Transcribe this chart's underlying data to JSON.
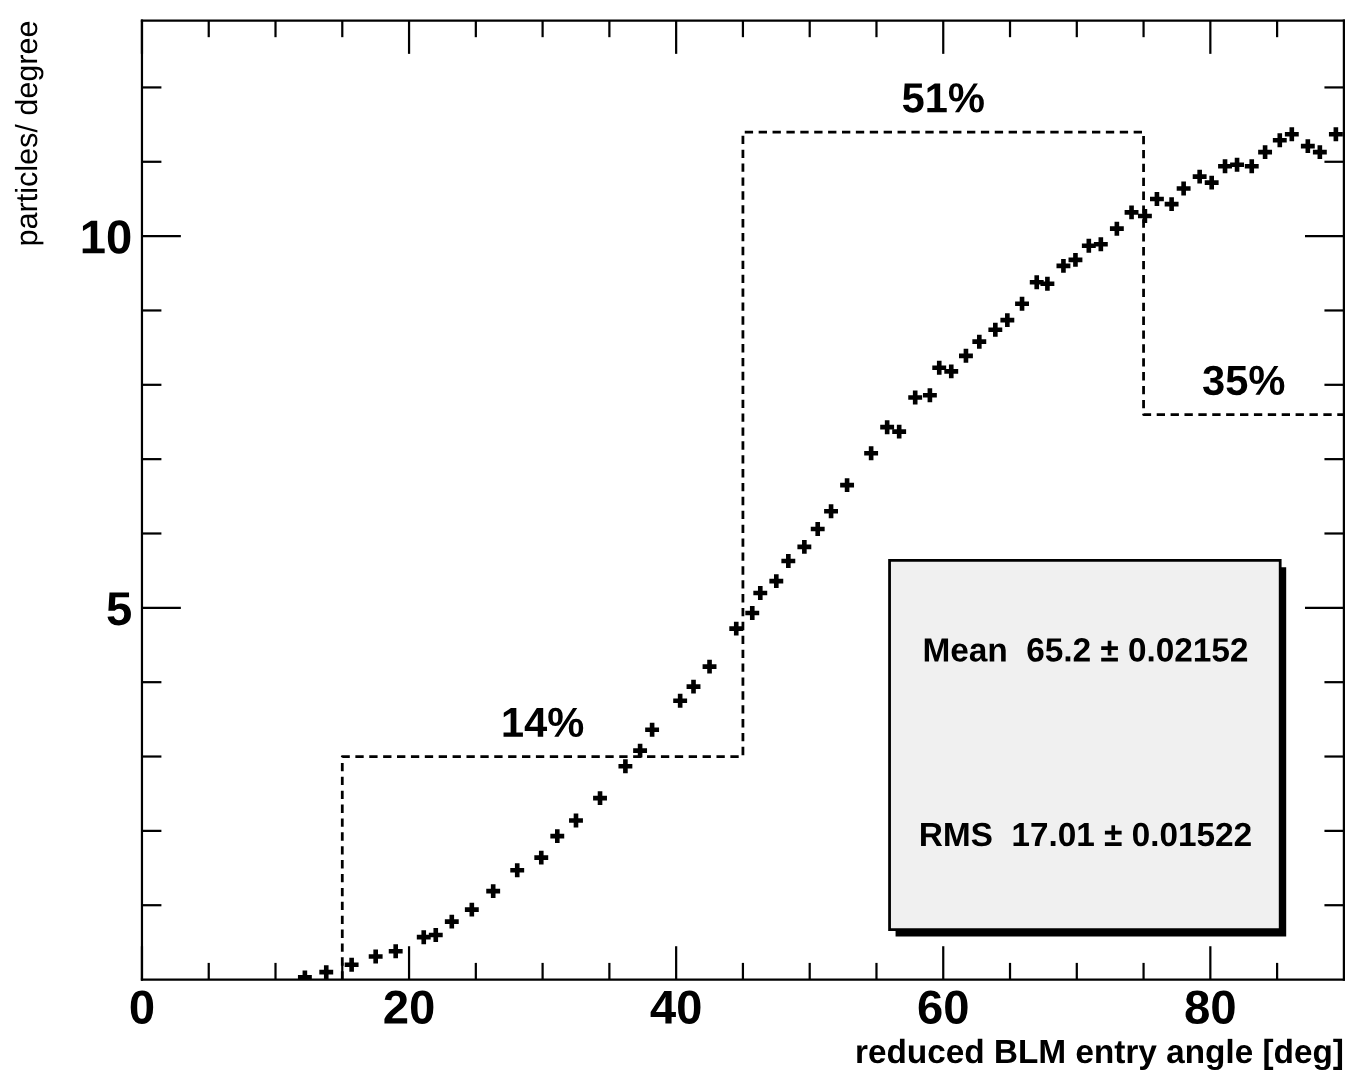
{
  "chart_data": {
    "type": "scatter",
    "xlabel": "reduced BLM entry angle [deg]",
    "ylabel": "particles/ degree",
    "xlim": [
      0,
      90
    ],
    "ylim": [
      0,
      12.9
    ],
    "xticks": [
      0,
      {
        "value": 5,
        "label": null
      },
      {
        "value": 10,
        "label": null
      },
      {
        "value": 15,
        "label": null
      },
      20,
      {
        "value": 25,
        "label": null
      },
      {
        "value": 30,
        "label": null
      },
      {
        "value": 35,
        "label": null
      },
      40,
      {
        "value": 45,
        "label": null
      },
      {
        "value": 50,
        "label": null
      },
      {
        "value": 55,
        "label": null
      },
      60,
      {
        "value": 65,
        "label": null
      },
      {
        "value": 70,
        "label": null
      },
      {
        "value": 75,
        "label": null
      },
      80,
      {
        "value": 85,
        "label": null
      }
    ],
    "yticks": [
      {
        "value": 1,
        "label": null
      },
      {
        "value": 2,
        "label": null
      },
      {
        "value": 3,
        "label": null
      },
      {
        "value": 4,
        "label": null
      },
      5,
      {
        "value": 6,
        "label": null
      },
      {
        "value": 7,
        "label": null
      },
      {
        "value": 8,
        "label": null
      },
      {
        "value": 9,
        "label": null
      },
      10,
      {
        "value": 11,
        "label": null
      },
      {
        "value": 12,
        "label": null
      }
    ],
    "grid": false,
    "marker": "cross",
    "series": [
      {
        "color": "#000000",
        "x": [
          12.2,
          13.8,
          15.7,
          17.5,
          19,
          21.1,
          22,
          23.2,
          24.7,
          26.3,
          28.1,
          29.9,
          31.1,
          32.5,
          34.3,
          36.2,
          37.3,
          38.2,
          40.3,
          41.3,
          42.5,
          44.5,
          45.7,
          46.3,
          47.5,
          48.4,
          49.6,
          50.6,
          51.6,
          52.8,
          54.6,
          55.8,
          56.7,
          57.9,
          59,
          59.7,
          60.6,
          61.7,
          62.7,
          63.9,
          64.8,
          65.9,
          67,
          67.8,
          69,
          69.9,
          70.9,
          71.8,
          73,
          74.1,
          75.1,
          76,
          77.1,
          78,
          79.2,
          80.1,
          81.1,
          82,
          83.1,
          84.1,
          85.2,
          86.1,
          87.3,
          88.2,
          89.4
        ],
        "values": [
          0.03,
          0.1,
          0.2,
          0.31,
          0.38,
          0.57,
          0.6,
          0.78,
          0.94,
          1.19,
          1.47,
          1.64,
          1.93,
          2.14,
          2.44,
          2.87,
          3.08,
          3.36,
          3.75,
          3.94,
          4.21,
          4.72,
          4.93,
          5.2,
          5.36,
          5.63,
          5.82,
          6.06,
          6.3,
          6.65,
          7.08,
          7.43,
          7.37,
          7.83,
          7.86,
          8.23,
          8.18,
          8.39,
          8.58,
          8.74,
          8.87,
          9.09,
          9.38,
          9.36,
          9.6,
          9.68,
          9.87,
          9.89,
          10.1,
          10.32,
          10.27,
          10.5,
          10.43,
          10.64,
          10.8,
          10.72,
          10.94,
          10.96,
          10.94,
          11.13,
          11.29,
          11.37,
          11.21,
          11.13,
          11.37
        ]
      },
      {
        "type": "step",
        "color": "#000000",
        "line_style": "dashed",
        "marker": "none",
        "x": [
          15,
          15,
          45,
          75,
          90
        ],
        "values": [
          0,
          3.0,
          11.4,
          7.6,
          7.6
        ]
      }
    ],
    "annotations": [
      {
        "text": "14%",
        "x": 30,
        "y": 3.0
      },
      {
        "text": "51%",
        "x": 60,
        "y": 11.4
      },
      {
        "text": "35%",
        "x": 82.5,
        "y": 7.6
      },
      "Mean  65.2 ± 0.02152",
      "RMS  17.01 ± 0.01522"
    ]
  }
}
